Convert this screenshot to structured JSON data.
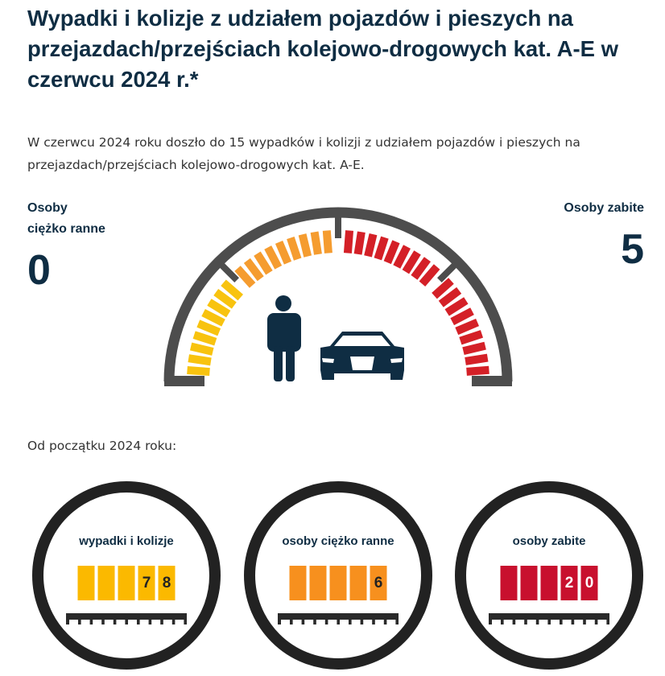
{
  "title": "Wypadki i kolizje z udziałem pojazdów i pieszych na przejazdach/przejściach kolejowo-drogowych kat. A-E w czerwcu 2024 r.*",
  "intro": "W czerwcu 2024 roku doszło do 15 wypadków i kolizji z udziałem pojazdów i pieszych na przejazdach/przejściach kolejowo-drogowych kat. A-E.",
  "injured": {
    "label1": "Osoby",
    "label2": "ciężko ranne",
    "value": "0"
  },
  "killed": {
    "label": "Osoby zabite",
    "value": "5"
  },
  "since": "Od początku 2024 roku:",
  "counters": [
    {
      "title": "wypadki i kolizje",
      "digits": [
        "",
        "",
        "",
        "7",
        "8"
      ],
      "color": "#fbb900"
    },
    {
      "title": "osoby ciężko ranne",
      "digits": [
        "",
        "",
        "",
        "",
        "6"
      ],
      "color": "#f7901e"
    },
    {
      "title": "osoby zabite",
      "digits": [
        "",
        "",
        "",
        "2",
        "0"
      ],
      "color": "#c8102e"
    }
  ],
  "colors": {
    "yellow": "#f8c30f",
    "orange": "#f59c2f",
    "red": "#d42027",
    "gauge": "#4d4d4d",
    "icon": "#0f2d43"
  }
}
